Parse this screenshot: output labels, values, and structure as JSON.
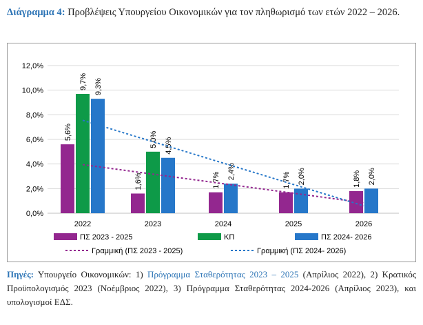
{
  "title": {
    "label": "Διάγραμμα 4:",
    "text": "Προβλέψεις Υπουργείου Οικονομικών για τον πληθωρισμό των ετών 2022 – 2026."
  },
  "chart_data": {
    "type": "bar",
    "categories": [
      "2022",
      "2023",
      "2024",
      "2025",
      "2026"
    ],
    "ylim": [
      0,
      12
    ],
    "yticks": [
      "0,0%",
      "2,0%",
      "4,0%",
      "6,0%",
      "8,0%",
      "10,0%",
      "12,0%"
    ],
    "grid": true,
    "legend_position": "bottom",
    "series": [
      {
        "name": "ΠΣ 2023 - 2025",
        "color": "#93278f",
        "values": [
          5.6,
          1.6,
          1.7,
          1.7,
          1.8
        ],
        "labels": [
          "5,6%",
          "1,6%",
          "1,7%",
          "1,7%",
          "1,8%"
        ]
      },
      {
        "name": "ΚΠ",
        "color": "#0e9a48",
        "values": [
          9.7,
          5.0,
          null,
          null,
          null
        ],
        "labels": [
          "9,7%",
          "5,0%",
          "",
          "",
          ""
        ]
      },
      {
        "name": "ΠΣ 2024- 2026",
        "color": "#2677c9",
        "values": [
          9.3,
          4.5,
          2.4,
          2.0,
          2.0
        ],
        "labels": [
          "9,3%",
          "4,5%",
          "2,4%",
          "2,0%",
          "2,0%"
        ]
      }
    ],
    "trendlines": [
      {
        "name": "Γραμμική (ΠΣ 2023 - 2025)",
        "color": "#93278f",
        "start": 3.95,
        "end": 0.85
      },
      {
        "name": "Γραμμική (ΠΣ 2024- 2026)",
        "color": "#2677c9",
        "start": 7.55,
        "end": 0.6
      }
    ]
  },
  "sources": {
    "label": "Πηγές:",
    "part1": "Υπουργείο Οικονομικών: 1)",
    "link": "Πρόγραμμα Σταθερότητας 2023 – 2025",
    "part2": "(Απρίλιος 2022), 2) Κρατικός Προϋπολογισμός 2023 (Νοέμβριος 2022), 3) Πρόγραμμα Σταθερότητας 2024-2026 (Απρίλιος 2023), και υπολογισμοί ΕΔΣ."
  }
}
